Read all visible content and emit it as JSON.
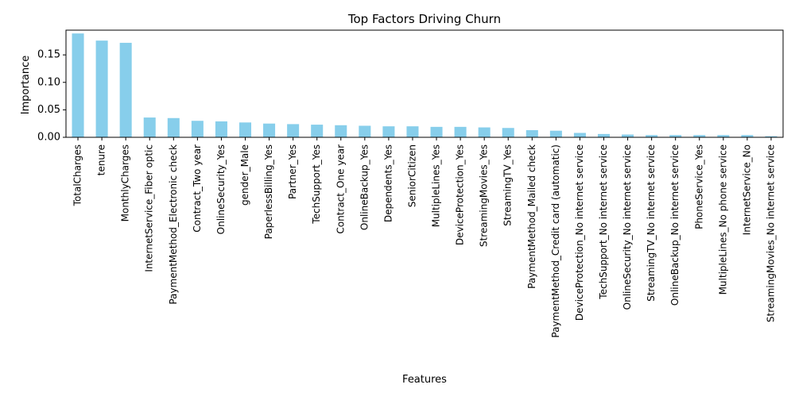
{
  "chart_data": {
    "type": "bar",
    "title": "Top Factors Driving Churn",
    "xlabel": "Features",
    "ylabel": "Importance",
    "ylim": [
      0,
      0.195
    ],
    "yticks": [
      "0.00",
      "0.05",
      "0.10",
      "0.15"
    ],
    "grid": false,
    "bar_color": "#87CEEB",
    "categories": [
      "TotalCharges",
      "tenure",
      "MonthlyCharges",
      "InternetService_Fiber optic",
      "PaymentMethod_Electronic check",
      "Contract_Two year",
      "OnlineSecurity_Yes",
      "gender_Male",
      "PaperlessBilling_Yes",
      "Partner_Yes",
      "TechSupport_Yes",
      "Contract_One year",
      "OnlineBackup_Yes",
      "Dependents_Yes",
      "SeniorCitizen",
      "MultipleLines_Yes",
      "DeviceProtection_Yes",
      "StreamingMovies_Yes",
      "StreamingTV_Yes",
      "PaymentMethod_Mailed check",
      "PaymentMethod_Credit card (automatic)",
      "DeviceProtection_No internet service",
      "TechSupport_No internet service",
      "OnlineSecurity_No internet service",
      "StreamingTV_No internet service",
      "OnlineBackup_No internet service",
      "PhoneService_Yes",
      "MultipleLines_No phone service",
      "InternetService_No",
      "StreamingMovies_No internet service"
    ],
    "values": [
      0.189,
      0.176,
      0.172,
      0.036,
      0.035,
      0.03,
      0.029,
      0.027,
      0.025,
      0.024,
      0.023,
      0.022,
      0.021,
      0.02,
      0.02,
      0.019,
      0.019,
      0.018,
      0.017,
      0.013,
      0.012,
      0.008,
      0.006,
      0.005,
      0.004,
      0.004,
      0.004,
      0.004,
      0.004,
      0.002
    ]
  }
}
